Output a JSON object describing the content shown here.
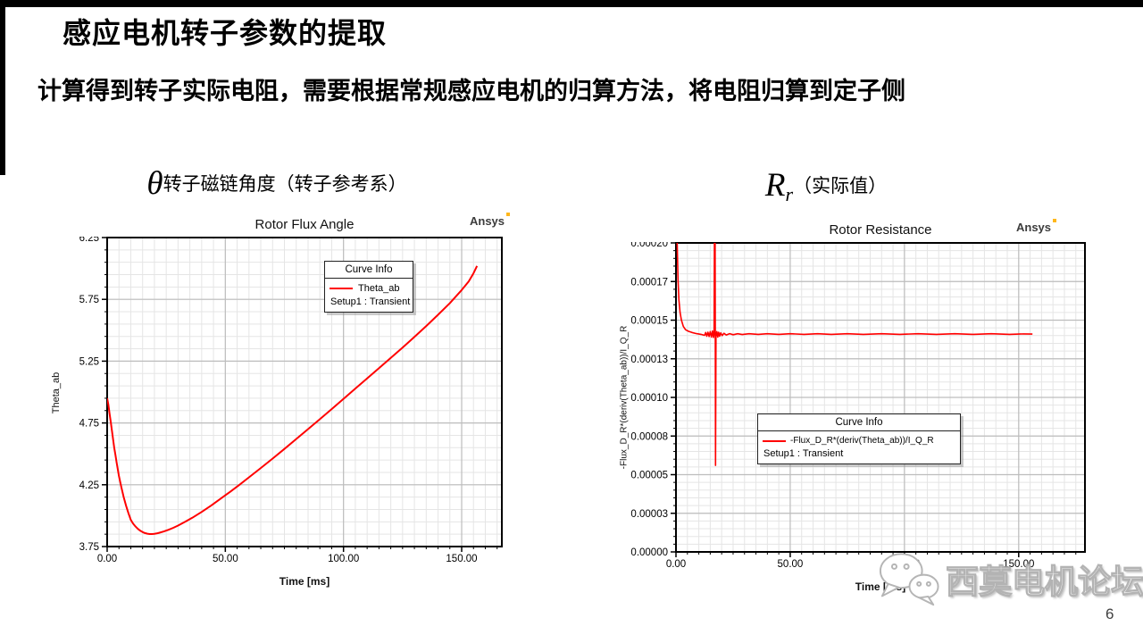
{
  "slide": {
    "title": "感应电机转子参数的提取",
    "subtitle": "计算得到转子实际电阻，需要根据常规感应电机的归算方法，将电阻归算到定子侧",
    "page_number": "6",
    "watermark_text": "西莫电机论坛",
    "watermark_icon": "wechat-icon",
    "accent_red": "#ff0000",
    "bar_color": "#000000"
  },
  "panels": [
    {
      "symbol": "θ",
      "subscript": "",
      "caption": "转子磁链角度（转子参考系）",
      "ansys_label": "Ansys"
    },
    {
      "symbol": "R",
      "subscript": "r",
      "caption": "（实际值）",
      "ansys_label": "Ansys"
    }
  ],
  "chart_data": [
    {
      "type": "line",
      "title": "Rotor Flux Angle",
      "xlabel": "Time [ms]",
      "ylabel": "Theta_ab",
      "xlim": [
        0,
        167
      ],
      "ylim": [
        3.75,
        6.25
      ],
      "xminor": 5,
      "yminor": 0.1,
      "grid": true,
      "legend_position": "top-right-inside",
      "xticks": [
        {
          "v": 0,
          "label": "0.00"
        },
        {
          "v": 50,
          "label": "50.00"
        },
        {
          "v": 100,
          "label": "100.00"
        },
        {
          "v": 150,
          "label": "150.00"
        }
      ],
      "yticks": [
        {
          "v": 3.75,
          "label": "3.75"
        },
        {
          "v": 4.25,
          "label": "4.25"
        },
        {
          "v": 4.75,
          "label": "4.75"
        },
        {
          "v": 5.25,
          "label": "5.25"
        },
        {
          "v": 5.75,
          "label": "5.75"
        },
        {
          "v": 6.25,
          "label": "6.25"
        }
      ],
      "legend": {
        "header": "Curve Info",
        "series_label": "Theta_ab",
        "setup_label": "Setup1 : Transient"
      },
      "series": [
        {
          "name": "Theta_ab",
          "color": "#ff0000",
          "width": 2,
          "points": [
            [
              0,
              4.95
            ],
            [
              0.5,
              4.9
            ],
            [
              1,
              4.83
            ],
            [
              1.5,
              4.76
            ],
            [
              2,
              4.69
            ],
            [
              2.5,
              4.62
            ],
            [
              3,
              4.55
            ],
            [
              3.5,
              4.49
            ],
            [
              4,
              4.43
            ],
            [
              5,
              4.32
            ],
            [
              6,
              4.23
            ],
            [
              7,
              4.15
            ],
            [
              8,
              4.08
            ],
            [
              9,
              4.02
            ],
            [
              10,
              3.965
            ],
            [
              11,
              3.935
            ],
            [
              12,
              3.912
            ],
            [
              13,
              3.893
            ],
            [
              14,
              3.878
            ],
            [
              15,
              3.867
            ],
            [
              16,
              3.859
            ],
            [
              17,
              3.854
            ],
            [
              18,
              3.851
            ],
            [
              19,
              3.851
            ],
            [
              20,
              3.853
            ],
            [
              21,
              3.856
            ],
            [
              22,
              3.861
            ],
            [
              24,
              3.872
            ],
            [
              26,
              3.886
            ],
            [
              28,
              3.902
            ],
            [
              30,
              3.92
            ],
            [
              33,
              3.95
            ],
            [
              36,
              3.983
            ],
            [
              40,
              4.03
            ],
            [
              44,
              4.082
            ],
            [
              48,
              4.137
            ],
            [
              52,
              4.192
            ],
            [
              56,
              4.25
            ],
            [
              60,
              4.31
            ],
            [
              65,
              4.385
            ],
            [
              70,
              4.462
            ],
            [
              75,
              4.54
            ],
            [
              80,
              4.62
            ],
            [
              85,
              4.7
            ],
            [
              90,
              4.78
            ],
            [
              95,
              4.862
            ],
            [
              100,
              4.945
            ],
            [
              105,
              5.028
            ],
            [
              110,
              5.11
            ],
            [
              115,
              5.193
            ],
            [
              120,
              5.276
            ],
            [
              125,
              5.36
            ],
            [
              130,
              5.446
            ],
            [
              135,
              5.534
            ],
            [
              140,
              5.625
            ],
            [
              145,
              5.72
            ],
            [
              150,
              5.825
            ],
            [
              153,
              5.895
            ],
            [
              155,
              5.96
            ],
            [
              156.5,
              6.02
            ]
          ]
        }
      ]
    },
    {
      "type": "line",
      "title": "Rotor Resistance",
      "xlabel": "Time [ms]",
      "ylabel": "-Flux_D_R*(deriv(Theta_ab))/I_Q_R",
      "xlim": [
        0,
        179
      ],
      "ylim": [
        0,
        0.0002
      ],
      "xminor": 5,
      "yminor": 5e-06,
      "grid": true,
      "legend_position": "middle-right-inside",
      "xticks": [
        {
          "v": 0,
          "label": "0.00"
        },
        {
          "v": 50,
          "label": "50.00"
        },
        {
          "v": 100,
          "label": "100.00"
        },
        {
          "v": 150,
          "label": "150.00"
        }
      ],
      "yticks": [
        {
          "v": 0,
          "label": "0.00000"
        },
        {
          "v": 2.5e-05,
          "label": "0.00003"
        },
        {
          "v": 5e-05,
          "label": "0.00005"
        },
        {
          "v": 7.5e-05,
          "label": "0.00008"
        },
        {
          "v": 0.0001,
          "label": "0.00010"
        },
        {
          "v": 0.000125,
          "label": "0.00013"
        },
        {
          "v": 0.00015,
          "label": "0.00015"
        },
        {
          "v": 0.000175,
          "label": "0.00017"
        },
        {
          "v": 0.0002,
          "label": "0.00020"
        }
      ],
      "legend": {
        "header": "Curve Info",
        "series_label": "-Flux_D_R*(deriv(Theta_ab))/I_Q_R",
        "setup_label": "Setup1 : Transient"
      },
      "series": [
        {
          "name": "-Flux_D_R*(deriv(Theta_ab))/I_Q_R",
          "color": "#ff0000",
          "width": 1.6,
          "points": [
            [
              0.4,
              0.00021
            ],
            [
              0.6,
              0.000196
            ],
            [
              0.9,
              0.000176
            ],
            [
              1.3,
              0.000163
            ],
            [
              1.8,
              0.000155
            ],
            [
              2.4,
              0.00015
            ],
            [
              3.2,
              0.000146
            ],
            [
              4.2,
              0.0001438
            ],
            [
              5.5,
              0.0001428
            ],
            [
              7,
              0.000142
            ],
            [
              9,
              0.0001413
            ],
            [
              11,
              0.0001408
            ],
            [
              12.5,
              0.0001402
            ],
            [
              13,
              0.000142
            ],
            [
              13.5,
              0.0001396
            ],
            [
              14,
              0.0001422
            ],
            [
              14.5,
              0.0001394
            ],
            [
              15,
              0.0001426
            ],
            [
              15.5,
              0.000139
            ],
            [
              16,
              0.000143
            ],
            [
              16.4,
              0.0001388
            ],
            [
              16.7,
              0.0001415
            ],
            [
              16.85,
              0.00021
            ],
            [
              17.1,
              0.00021
            ],
            [
              17.3,
              5.6e-05
            ],
            [
              17.5,
              0.0001396
            ],
            [
              17.9,
              0.0001426
            ],
            [
              18.3,
              0.000139
            ],
            [
              18.7,
              0.0001422
            ],
            [
              19.1,
              0.0001396
            ],
            [
              19.6,
              0.0001418
            ],
            [
              20.2,
              0.00014
            ],
            [
              21,
              0.0001415
            ],
            [
              22,
              0.0001404
            ],
            [
              23.5,
              0.0001413
            ],
            [
              25,
              0.0001406
            ],
            [
              27,
              0.0001412
            ],
            [
              29,
              0.0001407
            ],
            [
              32,
              0.0001412
            ],
            [
              36,
              0.0001408
            ],
            [
              40,
              0.0001412
            ],
            [
              45,
              0.0001408
            ],
            [
              50,
              0.0001412
            ],
            [
              56,
              0.0001408
            ],
            [
              62,
              0.0001412
            ],
            [
              68,
              0.0001408
            ],
            [
              75,
              0.0001412
            ],
            [
              82,
              0.0001408
            ],
            [
              90,
              0.0001412
            ],
            [
              98,
              0.0001408
            ],
            [
              106,
              0.0001412
            ],
            [
              114,
              0.0001408
            ],
            [
              122,
              0.0001412
            ],
            [
              130,
              0.0001408
            ],
            [
              138,
              0.0001412
            ],
            [
              146,
              0.0001408
            ],
            [
              152,
              0.0001411
            ],
            [
              156,
              0.000141
            ]
          ]
        }
      ]
    }
  ]
}
